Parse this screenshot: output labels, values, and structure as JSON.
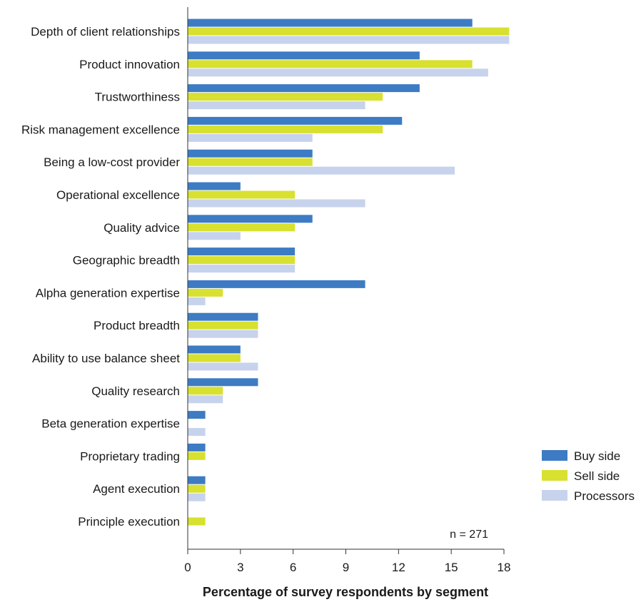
{
  "chart_data": {
    "type": "bar",
    "orientation": "horizontal",
    "title": "",
    "xlabel": "Percentage of survey respondents by segment",
    "ylabel": "",
    "xlim": [
      0,
      18
    ],
    "xticks": [
      0,
      3,
      6,
      9,
      12,
      15,
      18
    ],
    "grid": false,
    "legend_position": "bottom-right",
    "annotation": "n = 271",
    "categories": [
      "Depth of client relationships",
      "Product innovation",
      "Trustworthiness",
      "Risk management excellence",
      "Being a low-cost provider",
      "Operational excellence",
      "Quality advice",
      "Geographic breadth",
      "Alpha generation expertise",
      "Product breadth",
      "Ability to use balance sheet",
      "Quality research",
      "Beta generation expertise",
      "Proprietary trading",
      "Agent execution",
      "Principle execution"
    ],
    "series": [
      {
        "name": "Buy side",
        "color": "#3d7cc4",
        "values": [
          16.2,
          13.2,
          13.2,
          12.2,
          7.1,
          3.0,
          7.1,
          6.1,
          10.1,
          4.0,
          3.0,
          4.0,
          1.0,
          1.0,
          1.0,
          0
        ]
      },
      {
        "name": "Sell side",
        "color": "#d8e030",
        "values": [
          18.3,
          16.2,
          11.1,
          11.1,
          7.1,
          6.1,
          6.1,
          6.1,
          2.0,
          4.0,
          3.0,
          2.0,
          0,
          1.0,
          1.0,
          1.0
        ]
      },
      {
        "name": "Processors",
        "color": "#c7d3ec",
        "values": [
          18.3,
          17.1,
          10.1,
          7.1,
          15.2,
          10.1,
          3.0,
          6.1,
          1.0,
          4.0,
          4.0,
          2.0,
          1.0,
          0,
          1.0,
          0
        ]
      }
    ]
  }
}
